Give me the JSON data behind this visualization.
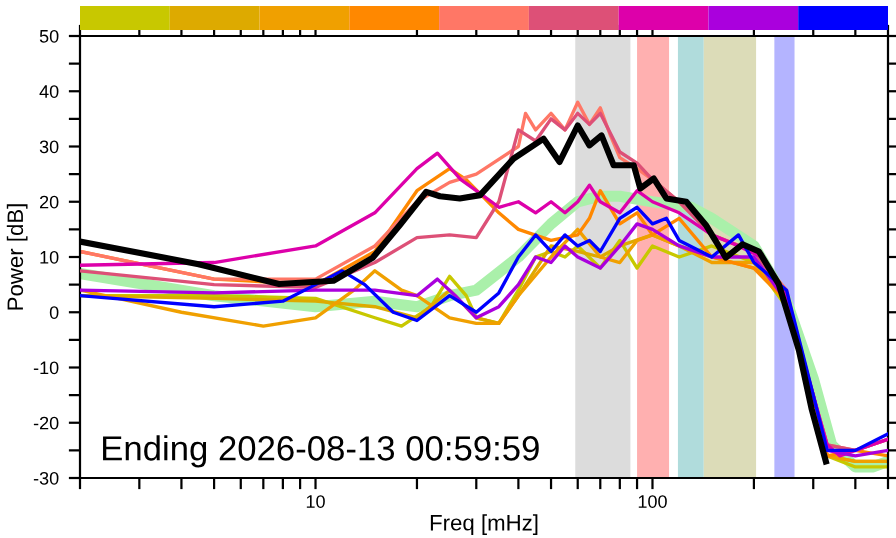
{
  "chart_data": {
    "type": "line",
    "xlabel": "Freq [mHz]",
    "ylabel": "Power [dB]",
    "log": "x",
    "grid": false,
    "legend": false,
    "marker": "none",
    "line_style": "solid",
    "xlim": [
      2,
      500
    ],
    "ylim": [
      -30,
      50
    ],
    "xticks": [
      {
        "value": 2,
        "label": null
      },
      {
        "value": 3,
        "label": null
      },
      {
        "value": 4,
        "label": null
      },
      {
        "value": 5,
        "label": null
      },
      {
        "value": 6,
        "label": null
      },
      {
        "value": 7,
        "label": null
      },
      {
        "value": 8,
        "label": null
      },
      {
        "value": 9,
        "label": null
      },
      10,
      {
        "value": 20,
        "label": null
      },
      {
        "value": 30,
        "label": null
      },
      {
        "value": 40,
        "label": null
      },
      {
        "value": 50,
        "label": null
      },
      {
        "value": 60,
        "label": null
      },
      {
        "value": 70,
        "label": null
      },
      {
        "value": 80,
        "label": null
      },
      {
        "value": 90,
        "label": null
      },
      100,
      {
        "value": 200,
        "label": null
      },
      {
        "value": 300,
        "label": null
      },
      {
        "value": 400,
        "label": null
      },
      {
        "value": 500,
        "label": null
      }
    ],
    "yticks": [
      -30,
      {
        "value": -25,
        "label": null
      },
      -20,
      {
        "value": -15,
        "label": null
      },
      -10,
      {
        "value": -5,
        "label": null
      },
      0,
      {
        "value": 5,
        "label": null
      },
      10,
      {
        "value": 15,
        "label": null
      },
      20,
      {
        "value": 25,
        "label": null
      },
      30,
      {
        "value": 35,
        "label": null
      },
      40,
      {
        "value": 45,
        "label": null
      },
      50
    ],
    "bands": [
      {
        "axis": "x",
        "from": 59,
        "to": 86,
        "color": "#dcdcdc"
      },
      {
        "axis": "x",
        "from": 90,
        "to": 112,
        "color": "#ffb0b0"
      },
      {
        "axis": "x",
        "from": 119,
        "to": 142,
        "color": "#b0dcdc"
      },
      {
        "axis": "x",
        "from": 142,
        "to": 203,
        "color": "#dcdcb8"
      },
      {
        "axis": "x",
        "from": 230,
        "to": 264,
        "color": "#b4b4ff"
      }
    ],
    "annotations": [
      "Ending 2026-08-13 00:59:59"
    ],
    "series": [
      {
        "color": "#aaf0aa",
        "x": [
          2,
          5,
          10,
          15,
          20,
          25,
          30,
          40,
          50,
          60,
          70,
          80,
          100,
          130,
          150,
          200,
          250,
          300,
          340,
          400,
          450,
          500
        ],
        "values": [
          7,
          3,
          1,
          2,
          1,
          3,
          4,
          10,
          16,
          20,
          21,
          21,
          20,
          19,
          17,
          12,
          2,
          -12,
          -24,
          -28,
          -28,
          -27
        ]
      },
      {
        "color": "#c8c800",
        "x": [
          2,
          5,
          10,
          15,
          18,
          22,
          25,
          28,
          30,
          35,
          40,
          45,
          50,
          55,
          60,
          70,
          80,
          90,
          100,
          120,
          150,
          200,
          250,
          300,
          330,
          400,
          500
        ],
        "values": [
          3,
          3,
          2.5,
          -1,
          -2.5,
          1,
          6.5,
          3,
          -1,
          -2,
          4,
          10,
          11,
          10,
          12,
          8,
          13,
          8,
          12,
          10,
          12,
          9,
          1,
          -16,
          -26,
          -28,
          -28
        ]
      },
      {
        "color": "#ddaa00",
        "x": [
          2,
          5,
          10,
          15,
          20,
          25,
          30,
          35,
          40,
          50,
          60,
          70,
          80,
          100,
          120,
          150,
          200,
          250,
          300,
          330,
          400,
          500
        ],
        "values": [
          3,
          2.5,
          2,
          1,
          -1,
          4,
          -1,
          -2,
          3,
          12,
          11,
          10,
          12,
          14,
          12,
          10,
          8,
          2,
          -16,
          -26,
          -27,
          -27
        ]
      },
      {
        "color": "#f0a000",
        "x": [
          2,
          4,
          7,
          10,
          13,
          15,
          18,
          20,
          25,
          30,
          35,
          40,
          50,
          60,
          70,
          80,
          90,
          100,
          120,
          150,
          200,
          250,
          300,
          330,
          400,
          500
        ],
        "values": [
          4,
          0,
          -2.5,
          -1,
          4,
          7.5,
          4,
          3,
          -1,
          -2,
          -2,
          3,
          10,
          15,
          10,
          9,
          13,
          14,
          12,
          9,
          9,
          2,
          -15,
          -26,
          -27,
          -27
        ]
      },
      {
        "color": "#ff8800",
        "x": [
          2,
          5,
          10,
          15,
          20,
          25,
          28,
          35,
          40,
          50,
          60,
          65,
          70,
          80,
          90,
          100,
          120,
          150,
          200,
          250,
          300,
          330,
          400,
          500
        ],
        "values": [
          11,
          6,
          5,
          11,
          22,
          26,
          24,
          18,
          15,
          13,
          14,
          17,
          22,
          16,
          18,
          14,
          17,
          10,
          8,
          2,
          -15,
          -26,
          -25,
          -26
        ]
      },
      {
        "color": "#ff7766",
        "x": [
          2,
          5,
          10,
          15,
          20,
          25,
          30,
          40,
          42,
          45,
          50,
          55,
          60,
          65,
          70,
          75,
          80,
          90,
          100,
          120,
          150,
          200,
          250,
          290,
          330,
          400,
          500
        ],
        "values": [
          11,
          6,
          6,
          12,
          20,
          23.5,
          25,
          30,
          36,
          33,
          36,
          33,
          38,
          34,
          37,
          32,
          28,
          26,
          24,
          20,
          14,
          11,
          4,
          -12,
          -24,
          -25,
          -23
        ]
      },
      {
        "color": "#dd5077",
        "x": [
          2,
          5,
          10,
          15,
          20,
          25,
          30,
          35,
          40,
          45,
          50,
          55,
          60,
          65,
          70,
          80,
          90,
          100,
          120,
          150,
          200,
          250,
          300,
          330,
          400,
          500
        ],
        "values": [
          7.5,
          5,
          4.5,
          9,
          13.5,
          14,
          13.5,
          20,
          33,
          31,
          35,
          33,
          36,
          34,
          36,
          29,
          27,
          24,
          20,
          14,
          11,
          3,
          -15,
          -24,
          -25,
          -23
        ]
      },
      {
        "color": "#dd00aa",
        "x": [
          2,
          5,
          10,
          15,
          20,
          23,
          27,
          30,
          35,
          40,
          45,
          50,
          55,
          60,
          65,
          70,
          80,
          90,
          100,
          120,
          150,
          180,
          210,
          250,
          290,
          330,
          360,
          400,
          500
        ],
        "values": [
          8.5,
          9,
          12,
          18,
          26,
          28.8,
          24,
          22,
          19,
          20,
          18,
          20,
          18,
          20,
          23,
          20,
          18,
          22,
          20,
          18,
          14,
          12,
          10,
          3,
          -12,
          -24,
          -26,
          -25,
          -23
        ]
      },
      {
        "color": "#aa00dd",
        "x": [
          2,
          5,
          10,
          15,
          20,
          23,
          26,
          30,
          35,
          40,
          45,
          50,
          55,
          60,
          70,
          80,
          90,
          100,
          120,
          150,
          200,
          250,
          300,
          330,
          400,
          500
        ],
        "values": [
          4,
          3.5,
          4,
          4,
          3,
          6,
          3,
          -1,
          1,
          5,
          10,
          9,
          12,
          10,
          8,
          12,
          16,
          15,
          12,
          10,
          10,
          2,
          -15,
          -25,
          -26,
          -25
        ]
      },
      {
        "color": "#0000ff",
        "x": [
          2,
          5,
          8,
          10,
          12,
          14,
          17,
          20,
          25,
          30,
          35,
          40,
          45,
          50,
          55,
          60,
          65,
          70,
          80,
          90,
          100,
          110,
          120,
          150,
          180,
          200,
          250,
          300,
          330,
          400,
          500
        ],
        "values": [
          3,
          1,
          2,
          5,
          7.5,
          5,
          0,
          -1.5,
          3,
          0,
          3.5,
          10,
          14,
          11,
          14,
          12,
          13,
          11,
          17,
          19,
          16,
          17,
          13,
          10,
          14,
          9,
          4,
          -15,
          -25,
          -25,
          -22
        ]
      },
      {
        "color": "#000000",
        "x": [
          2,
          4.5,
          7.8,
          11.3,
          14.8,
          17.8,
          21.3,
          23.4,
          26.8,
          30.8,
          38.7,
          47.5,
          53,
          60,
          65,
          70.6,
          76.7,
          88,
          92,
          100.9,
          110,
          126,
          144,
          165,
          185,
          207,
          237,
          272,
          297,
          327
        ],
        "values": [
          12.8,
          8.7,
          5.1,
          5.7,
          9.9,
          15.8,
          21.8,
          21,
          20.6,
          21.2,
          27.8,
          31.4,
          27.2,
          33.8,
          30.2,
          32,
          26.6,
          26.6,
          22.4,
          24.2,
          20.6,
          20,
          15.8,
          9.9,
          12.3,
          11,
          5.1,
          -6.9,
          -17.6,
          -27
        ]
      }
    ]
  }
}
